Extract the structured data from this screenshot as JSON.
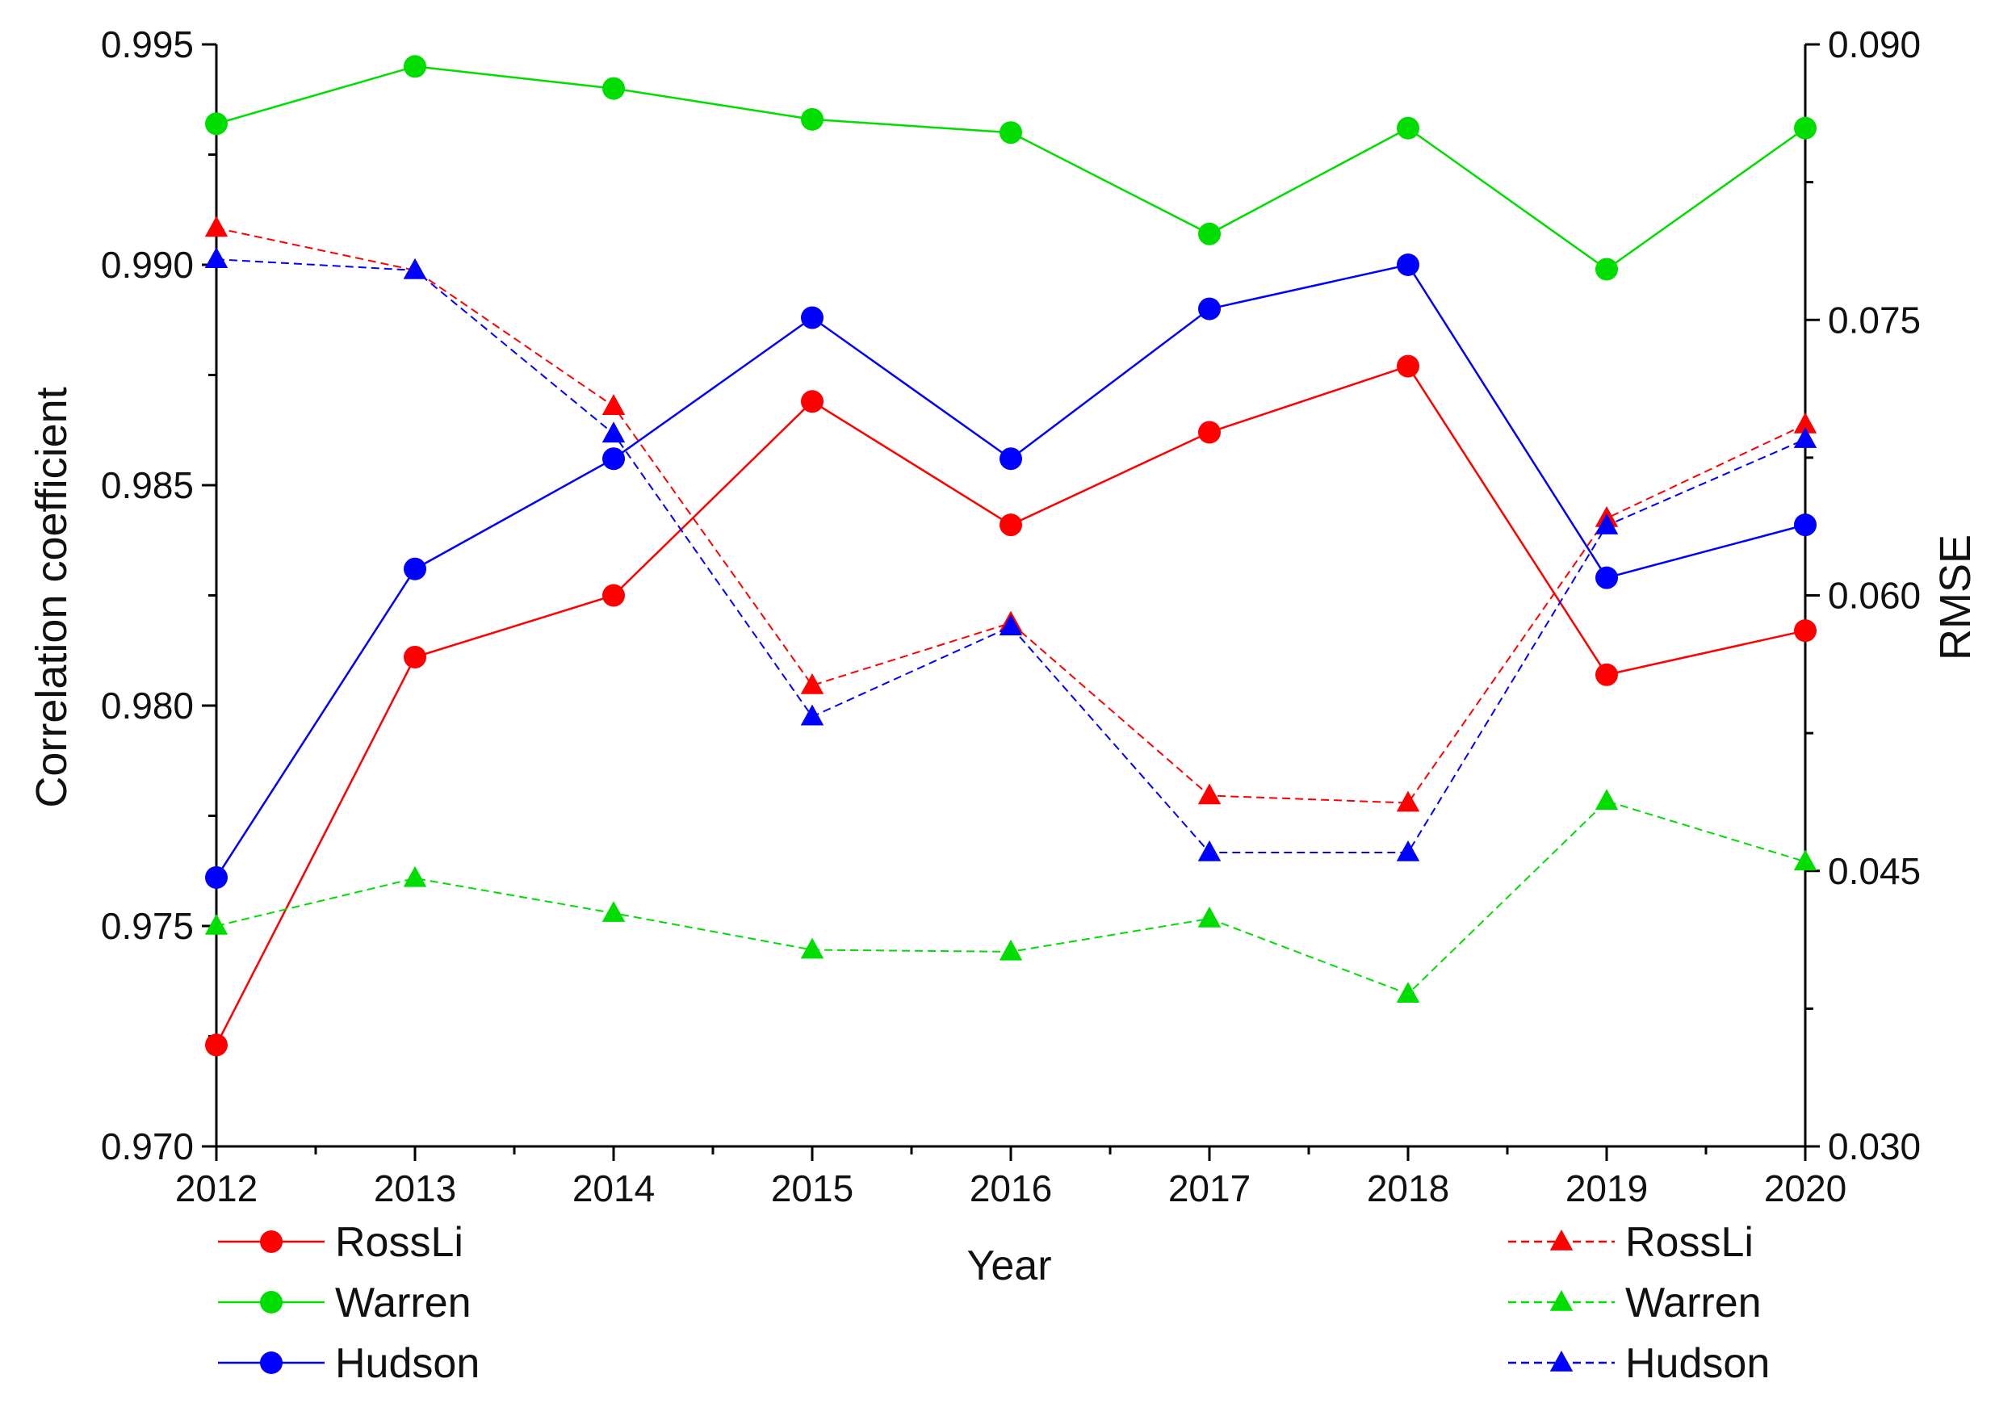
{
  "chart_data": {
    "type": "line",
    "title": "",
    "xlabel": "Year",
    "ylabel": "Correlation coefficient",
    "ylabel_right": "RMSE",
    "x": [
      2012,
      2013,
      2014,
      2015,
      2016,
      2017,
      2018,
      2019,
      2020
    ],
    "x_tick_labels": [
      "2012",
      "2013",
      "2014",
      "2015",
      "2016",
      "2017",
      "2018",
      "2019",
      "2020"
    ],
    "ylim": [
      0.97,
      0.995
    ],
    "y_ticks": [
      "0.970",
      "0.975",
      "0.980",
      "0.985",
      "0.990",
      "0.995"
    ],
    "ylim_right": [
      0.03,
      0.09
    ],
    "y_ticks_right": [
      "0.030",
      "0.045",
      "0.060",
      "0.075",
      "0.090"
    ],
    "grid": false,
    "series": [
      {
        "name": "RossLi",
        "axis": "left",
        "metric": "Correlation coefficient",
        "color": "#ff0000",
        "marker": "circle",
        "line": "solid",
        "values": [
          0.9723,
          0.9811,
          0.9825,
          0.9869,
          0.9841,
          0.9862,
          0.9877,
          0.9807,
          0.9817
        ]
      },
      {
        "name": "Warren",
        "axis": "left",
        "metric": "Correlation coefficient",
        "color": "#00dd00",
        "marker": "circle",
        "line": "solid",
        "values": [
          0.9932,
          0.9945,
          0.994,
          0.9933,
          0.993,
          0.9907,
          0.9931,
          0.9899,
          0.9931
        ]
      },
      {
        "name": "Hudson",
        "axis": "left",
        "metric": "Correlation coefficient",
        "color": "#0000ff",
        "marker": "circle",
        "line": "solid",
        "values": [
          0.9761,
          0.9831,
          0.9856,
          0.9888,
          0.9856,
          0.989,
          0.99,
          0.9829,
          0.9841
        ]
      },
      {
        "name": "RossLi",
        "axis": "right",
        "metric": "RMSE",
        "color": "#ff0000",
        "marker": "triangle",
        "line": "dashed",
        "values": [
          0.08,
          0.0777,
          0.0703,
          0.0551,
          0.0585,
          0.0491,
          0.0487,
          0.0642,
          0.0693
        ]
      },
      {
        "name": "Warren",
        "axis": "right",
        "metric": "RMSE",
        "color": "#00dd00",
        "marker": "triangle",
        "line": "dashed",
        "values": [
          0.042,
          0.0446,
          0.0427,
          0.0407,
          0.0406,
          0.0424,
          0.0383,
          0.0488,
          0.0455
        ]
      },
      {
        "name": "Hudson",
        "axis": "right",
        "metric": "RMSE",
        "color": "#0000ff",
        "marker": "triangle",
        "line": "dashed",
        "values": [
          0.0783,
          0.0777,
          0.0688,
          0.0534,
          0.0583,
          0.046,
          0.046,
          0.0638,
          0.0685
        ]
      }
    ],
    "legend_left": {
      "placement": "bottom-left",
      "entries": [
        "RossLi",
        "Warren",
        "Hudson"
      ]
    },
    "legend_right": {
      "placement": "bottom-right",
      "entries": [
        "RossLi",
        "Warren",
        "Hudson"
      ]
    }
  }
}
